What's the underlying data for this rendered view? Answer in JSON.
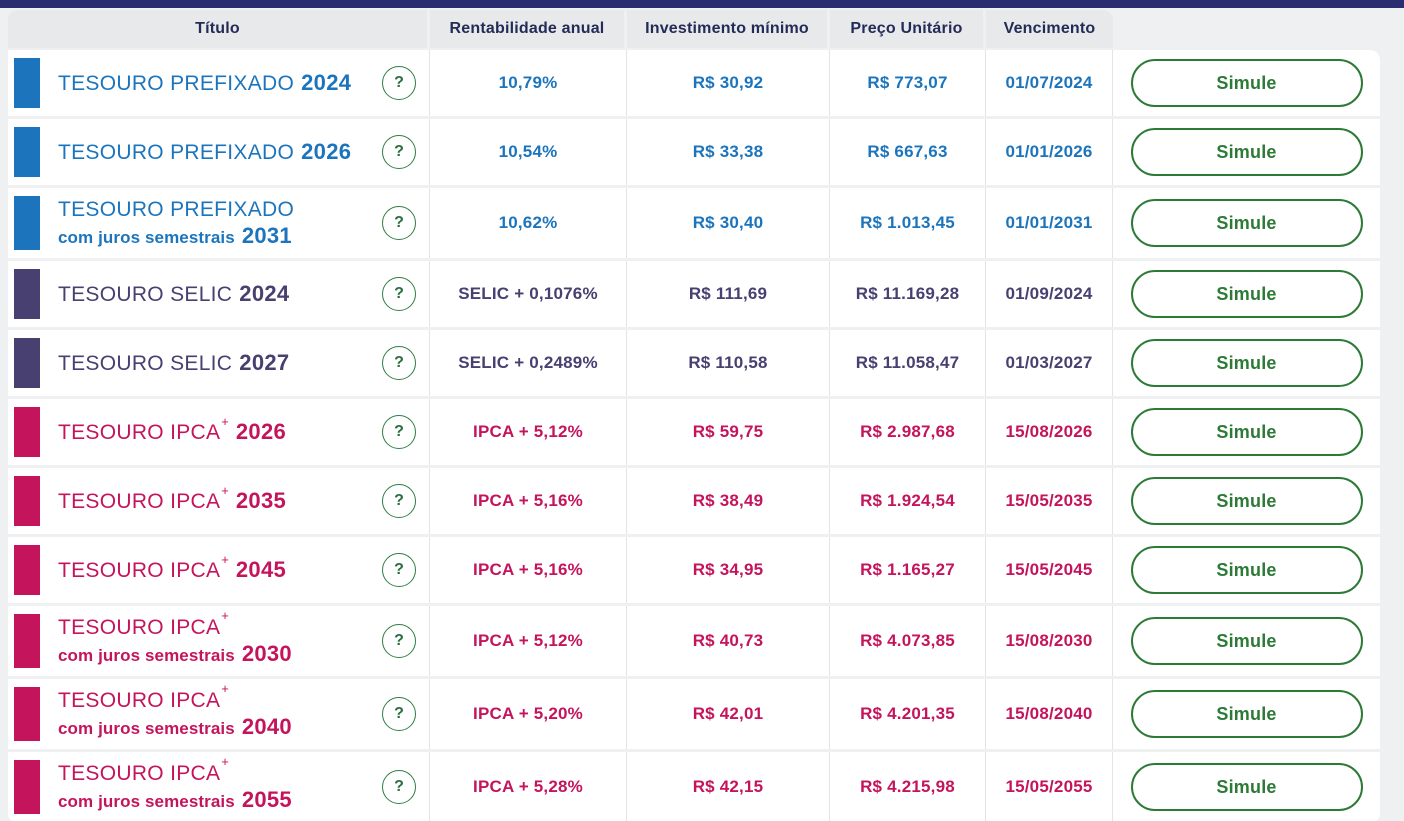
{
  "page": {
    "top_bar_color": "#2b2d71",
    "background_color": "#eef0f2"
  },
  "table": {
    "headers": [
      {
        "label": "Título"
      },
      {
        "label": "Rentabilidade anual"
      },
      {
        "label": "Investimento mínimo"
      },
      {
        "label": "Preço Unitário"
      },
      {
        "label": "Vencimento"
      }
    ],
    "type_colors": {
      "prefixado": "#1c75bc",
      "selic": "#474071",
      "ipca": "#c4145c"
    },
    "button_color": "#2d7a37",
    "help_icon_glyph": "?",
    "simulate_label": "Simule",
    "rows": [
      {
        "type": "prefixado",
        "title": "TESOURO PREFIXADO",
        "sup": "",
        "subtitle": "",
        "year": "2024",
        "rate": "10,79%",
        "min_investment": "R$ 30,92",
        "unit_price": "R$ 773,07",
        "maturity": "01/07/2024"
      },
      {
        "type": "prefixado",
        "title": "TESOURO PREFIXADO",
        "sup": "",
        "subtitle": "",
        "year": "2026",
        "rate": "10,54%",
        "min_investment": "R$ 33,38",
        "unit_price": "R$ 667,63",
        "maturity": "01/01/2026"
      },
      {
        "type": "prefixado",
        "title": "TESOURO PREFIXADO",
        "sup": "",
        "subtitle": "com juros semestrais",
        "year": "2031",
        "rate": "10,62%",
        "min_investment": "R$ 30,40",
        "unit_price": "R$ 1.013,45",
        "maturity": "01/01/2031"
      },
      {
        "type": "selic",
        "title": "TESOURO SELIC",
        "sup": "",
        "subtitle": "",
        "year": "2024",
        "rate": "SELIC + 0,1076%",
        "min_investment": "R$ 111,69",
        "unit_price": "R$ 11.169,28",
        "maturity": "01/09/2024"
      },
      {
        "type": "selic",
        "title": "TESOURO SELIC",
        "sup": "",
        "subtitle": "",
        "year": "2027",
        "rate": "SELIC + 0,2489%",
        "min_investment": "R$ 110,58",
        "unit_price": "R$ 11.058,47",
        "maturity": "01/03/2027"
      },
      {
        "type": "ipca",
        "title": "TESOURO IPCA",
        "sup": "+",
        "subtitle": "",
        "year": "2026",
        "rate": "IPCA + 5,12%",
        "min_investment": "R$ 59,75",
        "unit_price": "R$ 2.987,68",
        "maturity": "15/08/2026"
      },
      {
        "type": "ipca",
        "title": "TESOURO IPCA",
        "sup": "+",
        "subtitle": "",
        "year": "2035",
        "rate": "IPCA + 5,16%",
        "min_investment": "R$ 38,49",
        "unit_price": "R$ 1.924,54",
        "maturity": "15/05/2035"
      },
      {
        "type": "ipca",
        "title": "TESOURO IPCA",
        "sup": "+",
        "subtitle": "",
        "year": "2045",
        "rate": "IPCA + 5,16%",
        "min_investment": "R$ 34,95",
        "unit_price": "R$ 1.165,27",
        "maturity": "15/05/2045"
      },
      {
        "type": "ipca",
        "title": "TESOURO IPCA",
        "sup": "+",
        "subtitle": "com juros semestrais",
        "year": "2030",
        "rate": "IPCA + 5,12%",
        "min_investment": "R$ 40,73",
        "unit_price": "R$ 4.073,85",
        "maturity": "15/08/2030"
      },
      {
        "type": "ipca",
        "title": "TESOURO IPCA",
        "sup": "+",
        "subtitle": "com juros semestrais",
        "year": "2040",
        "rate": "IPCA + 5,20%",
        "min_investment": "R$ 42,01",
        "unit_price": "R$ 4.201,35",
        "maturity": "15/08/2040"
      },
      {
        "type": "ipca",
        "title": "TESOURO IPCA",
        "sup": "+",
        "subtitle": "com juros semestrais",
        "year": "2055",
        "rate": "IPCA + 5,28%",
        "min_investment": "R$ 42,15",
        "unit_price": "R$ 4.215,98",
        "maturity": "15/05/2055"
      }
    ]
  }
}
